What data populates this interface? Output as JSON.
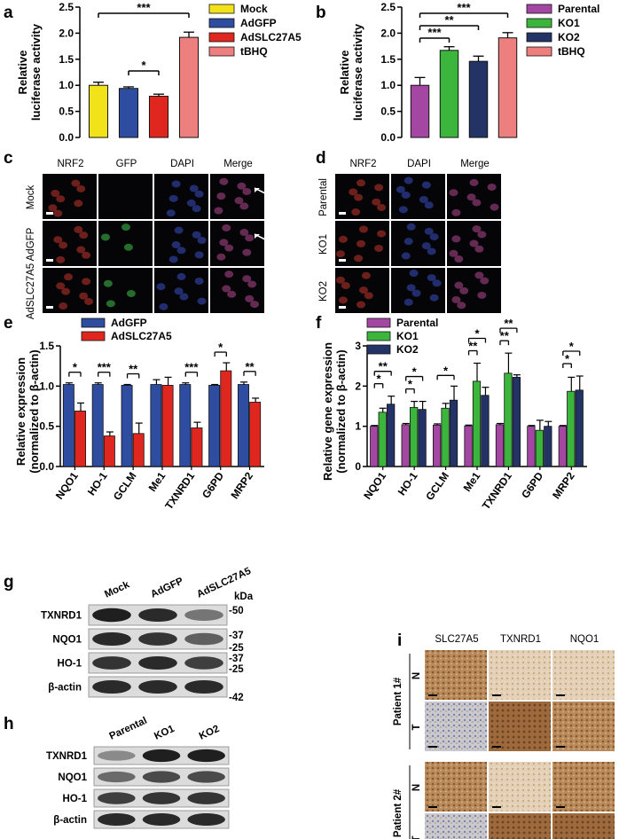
{
  "panels": {
    "a": {
      "letter": "a",
      "ylabel": [
        "Relative",
        "luciferase activity"
      ],
      "chart_data": {
        "type": "bar",
        "categories": [
          "Mock",
          "AdGFP",
          "AdSLC27A5",
          "tBHQ"
        ],
        "values": [
          1.0,
          0.94,
          0.79,
          1.92
        ],
        "errors": [
          0.06,
          0.03,
          0.04,
          0.1
        ],
        "colors": [
          "#f2e21a",
          "#2f4da0",
          "#e0271f",
          "#ee7f7f"
        ],
        "ylim": [
          0,
          2.5
        ],
        "yticks": [
          "0.0",
          "0.5",
          "1.0",
          "1.5",
          "2.0",
          "2.5"
        ],
        "legend": [
          "Mock",
          "AdGFP",
          "AdSLC27A5",
          "tBHQ"
        ],
        "significance": [
          {
            "from": 0,
            "to": 3,
            "label": "***"
          },
          {
            "from": 1,
            "to": 2,
            "label": "*"
          }
        ]
      }
    },
    "b": {
      "letter": "b",
      "ylabel": [
        "Relative",
        "luciferase activity"
      ],
      "chart_data": {
        "type": "bar",
        "categories": [
          "Parental",
          "KO1",
          "KO2",
          "tBHQ"
        ],
        "values": [
          1.0,
          1.67,
          1.46,
          1.91
        ],
        "errors": [
          0.15,
          0.07,
          0.1,
          0.1
        ],
        "colors": [
          "#a347a3",
          "#3bb53b",
          "#243366",
          "#ee7f7f"
        ],
        "ylim": [
          0,
          2.5
        ],
        "yticks": [
          "0.0",
          "0.5",
          "1.0",
          "1.5",
          "2.0",
          "2.5"
        ],
        "legend": [
          "Parental",
          "KO1",
          "KO2",
          "tBHQ"
        ],
        "significance": [
          {
            "from": 0,
            "to": 3,
            "label": "***"
          },
          {
            "from": 0,
            "to": 2,
            "label": "**"
          },
          {
            "from": 0,
            "to": 1,
            "label": "***"
          }
        ]
      }
    },
    "c": {
      "letter": "c",
      "columns": [
        "NRF2",
        "GFP",
        "DAPI",
        "Merge"
      ],
      "rows": [
        "Mock",
        "AdGFP",
        "AdSLC27A5"
      ]
    },
    "d": {
      "letter": "d",
      "columns": [
        "NRF2",
        "DAPI",
        "Merge"
      ],
      "rows": [
        "Parental",
        "KO1",
        "KO2"
      ]
    },
    "e": {
      "letter": "e",
      "ylabel": [
        "Relative expression",
        "(normalized to β-actin)"
      ],
      "chart_data": {
        "type": "bar",
        "categories": [
          "NQO1",
          "HO-1",
          "GCLM",
          "Me1",
          "TXNRD1",
          "G6PD",
          "MRP2"
        ],
        "series": [
          {
            "name": "AdGFP",
            "color": "#2f4da0",
            "values": [
              1.02,
              1.02,
              1.01,
              1.02,
              1.02,
              1.01,
              1.02
            ],
            "errors": [
              0.02,
              0.02,
              0.01,
              0.06,
              0.02,
              0.01,
              0.03
            ]
          },
          {
            "name": "AdSLC27A5",
            "color": "#e0271f",
            "values": [
              0.69,
              0.38,
              0.41,
              1.01,
              0.48,
              1.19,
              0.8
            ],
            "errors": [
              0.1,
              0.05,
              0.13,
              0.1,
              0.07,
              0.1,
              0.05
            ]
          }
        ],
        "ylim": [
          0,
          1.5
        ],
        "yticks": [
          "0.0",
          "0.5",
          "1.0",
          "1.5"
        ],
        "significance": [
          {
            "cat": 0,
            "label": "*"
          },
          {
            "cat": 1,
            "label": "***"
          },
          {
            "cat": 2,
            "label": "**"
          },
          {
            "cat": 4,
            "label": "***"
          },
          {
            "cat": 5,
            "label": "*"
          },
          {
            "cat": 6,
            "label": "**"
          }
        ]
      }
    },
    "f": {
      "letter": "f",
      "ylabel": [
        "Relative gene expression",
        "(normalized to β-actin)"
      ],
      "chart_data": {
        "type": "bar",
        "categories": [
          "NQO1",
          "HO-1",
          "GCLM",
          "Me1",
          "TXNRD1",
          "G6PD",
          "MRP2"
        ],
        "series": [
          {
            "name": "Parental",
            "color": "#a347a3",
            "values": [
              1.0,
              1.04,
              1.03,
              1.01,
              1.04,
              1.0,
              1.0
            ],
            "errors": [
              0.02,
              0.03,
              0.03,
              0.02,
              0.03,
              0.02,
              0.02
            ]
          },
          {
            "name": "KO1",
            "color": "#3bb53b",
            "values": [
              1.35,
              1.47,
              1.45,
              2.12,
              2.32,
              0.9,
              1.87
            ],
            "errors": [
              0.1,
              0.15,
              0.12,
              0.45,
              0.5,
              0.25,
              0.35
            ]
          },
          {
            "name": "KO2",
            "color": "#243366",
            "values": [
              1.55,
              1.42,
              1.65,
              1.77,
              2.22,
              1.0,
              1.9
            ],
            "errors": [
              0.2,
              0.2,
              0.35,
              0.2,
              0.06,
              0.12,
              0.35
            ]
          }
        ],
        "ylim": [
          0,
          3
        ],
        "yticks": [
          "0",
          "1",
          "2",
          "3"
        ],
        "significance": [
          {
            "cat": 0,
            "a": 0,
            "b": 2,
            "label": "**"
          },
          {
            "cat": 0,
            "a": 0,
            "b": 1,
            "label": "*"
          },
          {
            "cat": 1,
            "a": 0,
            "b": 2,
            "label": "*"
          },
          {
            "cat": 1,
            "a": 0,
            "b": 1,
            "label": "*"
          },
          {
            "cat": 2,
            "a": 0,
            "b": 2,
            "label": "*"
          },
          {
            "cat": 3,
            "a": 0,
            "b": 2,
            "label": "*"
          },
          {
            "cat": 3,
            "a": 0,
            "b": 1,
            "label": "**"
          },
          {
            "cat": 4,
            "a": 0,
            "b": 2,
            "label": "**"
          },
          {
            "cat": 4,
            "a": 0,
            "b": 1,
            "label": "**"
          },
          {
            "cat": 6,
            "a": 0,
            "b": 2,
            "label": "*"
          },
          {
            "cat": 6,
            "a": 0,
            "b": 1,
            "label": "*"
          }
        ]
      }
    },
    "g": {
      "letter": "g",
      "lanes": [
        "Mock",
        "AdGFP",
        "AdSLC27A5"
      ],
      "rows": [
        {
          "label": "TXNRD1",
          "intensity": [
            0.95,
            0.9,
            0.55
          ]
        },
        {
          "label": "NQO1",
          "intensity": [
            0.9,
            0.85,
            0.65
          ]
        },
        {
          "label": "HO-1",
          "intensity": [
            0.85,
            0.9,
            0.8
          ]
        },
        {
          "label": "β-actin",
          "intensity": [
            0.9,
            0.9,
            0.9
          ]
        }
      ],
      "kda_title": "kDa",
      "markers": [
        "-50",
        "-37",
        "-25",
        "-37",
        "-25",
        "-42"
      ]
    },
    "h": {
      "letter": "h",
      "lanes": [
        "Parental",
        "KO1",
        "KO2"
      ],
      "rows": [
        {
          "label": "TXNRD1",
          "intensity": [
            0.45,
            0.95,
            0.95
          ]
        },
        {
          "label": "NQO1",
          "intensity": [
            0.6,
            0.75,
            0.75
          ]
        },
        {
          "label": "HO-1",
          "intensity": [
            0.8,
            0.85,
            0.85
          ]
        },
        {
          "label": "β-actin",
          "intensity": [
            0.9,
            0.9,
            0.9
          ]
        }
      ]
    },
    "i": {
      "letter": "i",
      "columns": [
        "SLC27A5",
        "TXNRD1",
        "NQO1"
      ],
      "patients": [
        "Patient 1#",
        "Patient 2#"
      ],
      "tissue": [
        "N",
        "T"
      ]
    }
  }
}
